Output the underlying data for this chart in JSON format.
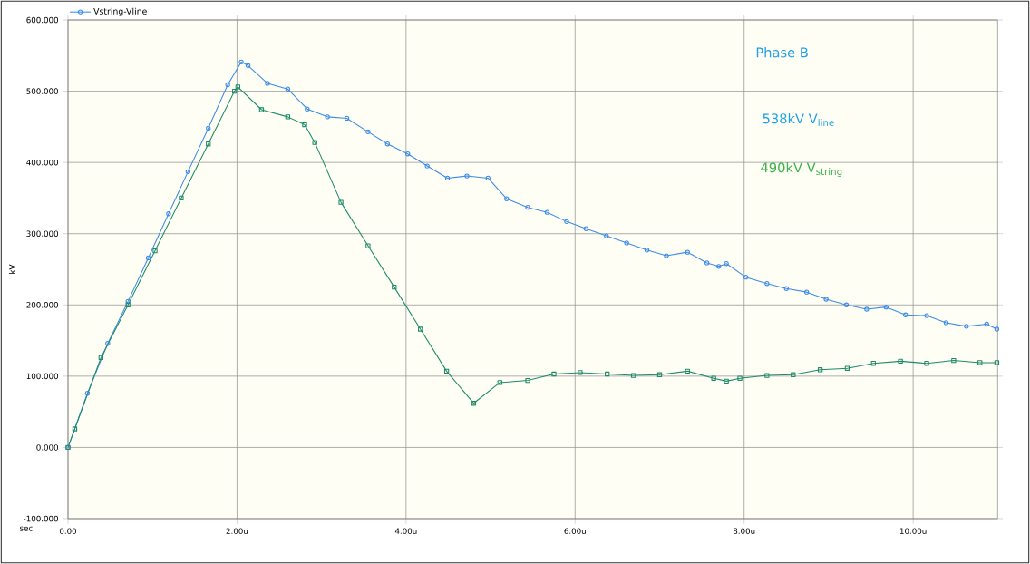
{
  "chart_data": {
    "type": "line",
    "xlabel": "sec",
    "ylabel": "kV",
    "annotations": [
      "Phase B",
      "538kV V$_{line}$",
      "490kV V$_{string}$"
    ],
    "xlim": [
      0,
      11.0
    ],
    "ylim": [
      -100,
      600
    ],
    "xticks": [
      {
        "value": 0,
        "label": "0.00"
      },
      {
        "value": 2,
        "label": "2.00u"
      },
      {
        "value": 4,
        "label": "4.00u"
      },
      {
        "value": 6,
        "label": "6.00u"
      },
      {
        "value": 8,
        "label": "8.00u"
      },
      {
        "value": 10,
        "label": "10.00u"
      }
    ],
    "yticks": [
      {
        "value": -100,
        "label": "-100.000"
      },
      {
        "value": 0,
        "label": "0.000"
      },
      {
        "value": 100,
        "label": "100.000"
      },
      {
        "value": 200,
        "label": "200.000"
      },
      {
        "value": 300,
        "label": "300.000"
      },
      {
        "value": 400,
        "label": "400.000"
      },
      {
        "value": 500,
        "label": "500.000"
      },
      {
        "value": 600,
        "label": "600.000"
      }
    ],
    "grid": true,
    "legend": "top left",
    "series": [
      {
        "name": "Vstring-Vline",
        "color": "#3c8ce6",
        "marker": "circle",
        "x": [
          0,
          0.23,
          0.47,
          0.71,
          0.95,
          1.19,
          1.42,
          1.66,
          1.89,
          2.05,
          2.13,
          2.36,
          2.6,
          2.83,
          3.07,
          3.3,
          3.55,
          3.78,
          4.02,
          4.25,
          4.49,
          4.72,
          4.97,
          5.19,
          5.44,
          5.67,
          5.9,
          6.13,
          6.37,
          6.61,
          6.85,
          7.08,
          7.33,
          7.56,
          7.7,
          7.79,
          8.02,
          8.27,
          8.5,
          8.74,
          8.97,
          9.21,
          9.45,
          9.68,
          9.91,
          10.16,
          10.39,
          10.63,
          10.87,
          10.99
        ],
        "values": [
          0,
          76,
          146,
          205,
          266,
          328,
          387,
          448,
          509,
          541,
          536,
          511,
          503,
          475,
          464,
          462,
          443,
          426,
          412,
          395,
          378,
          381,
          378,
          349,
          337,
          330,
          317,
          307,
          297,
          287,
          277,
          269,
          274,
          259,
          254,
          258,
          239,
          230,
          223,
          218,
          208,
          200,
          194,
          197,
          186,
          185,
          175,
          170,
          173,
          166
        ]
      },
      {
        "color": "#1e8a6a",
        "marker": "square",
        "x": [
          0,
          0.08,
          0.39,
          0.71,
          1.03,
          1.34,
          1.66,
          1.97,
          2.01,
          2.29,
          2.6,
          2.8,
          2.92,
          3.23,
          3.55,
          3.86,
          4.17,
          4.48,
          4.8,
          5.11,
          5.44,
          5.75,
          6.06,
          6.38,
          6.69,
          7.0,
          7.33,
          7.64,
          7.79,
          7.95,
          8.27,
          8.58,
          8.9,
          9.22,
          9.53,
          9.85,
          10.16,
          10.48,
          10.79,
          10.99
        ],
        "values": [
          0,
          26,
          126,
          200,
          276,
          350,
          426,
          500,
          506,
          474,
          464,
          453,
          428,
          344,
          283,
          225,
          166,
          107,
          62,
          91,
          94,
          103,
          105,
          103,
          101,
          102,
          107,
          97,
          93,
          97,
          101,
          102,
          109,
          111,
          118,
          121,
          118,
          122,
          119,
          119
        ]
      }
    ]
  }
}
